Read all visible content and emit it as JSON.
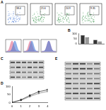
{
  "panel_labels": [
    "A",
    "B",
    "C",
    "D",
    "E"
  ],
  "flow": {
    "percentages": [
      "38.4",
      "21.6",
      "24.9",
      "9.35"
    ]
  },
  "chart_data": [
    {
      "type": "bar",
      "categories": [
        null,
        null
      ],
      "series": [
        {
          "color": "#333333",
          "values": [
            82,
            38
          ]
        },
        {
          "color": "#9a9a9a",
          "values": [
            61,
            22
          ]
        }
      ],
      "ylim": [
        0,
        100
      ],
      "yticks": [
        0,
        50,
        100
      ],
      "grid": false
    },
    {
      "type": "line",
      "x": [
        0,
        1,
        2,
        3,
        4
      ],
      "series": [
        {
          "color": "#222222",
          "marker": "circle",
          "values": [
            2,
            18,
            45,
            68,
            80
          ]
        },
        {
          "color": "#777777",
          "marker": "square",
          "values": [
            2,
            15,
            38,
            58,
            70
          ]
        }
      ],
      "xlim": [
        0,
        4
      ],
      "xticks": [
        0,
        1,
        2,
        3,
        4
      ],
      "ylim": [
        0,
        100
      ],
      "yticks": [
        0,
        50,
        100
      ],
      "grid": false
    }
  ]
}
